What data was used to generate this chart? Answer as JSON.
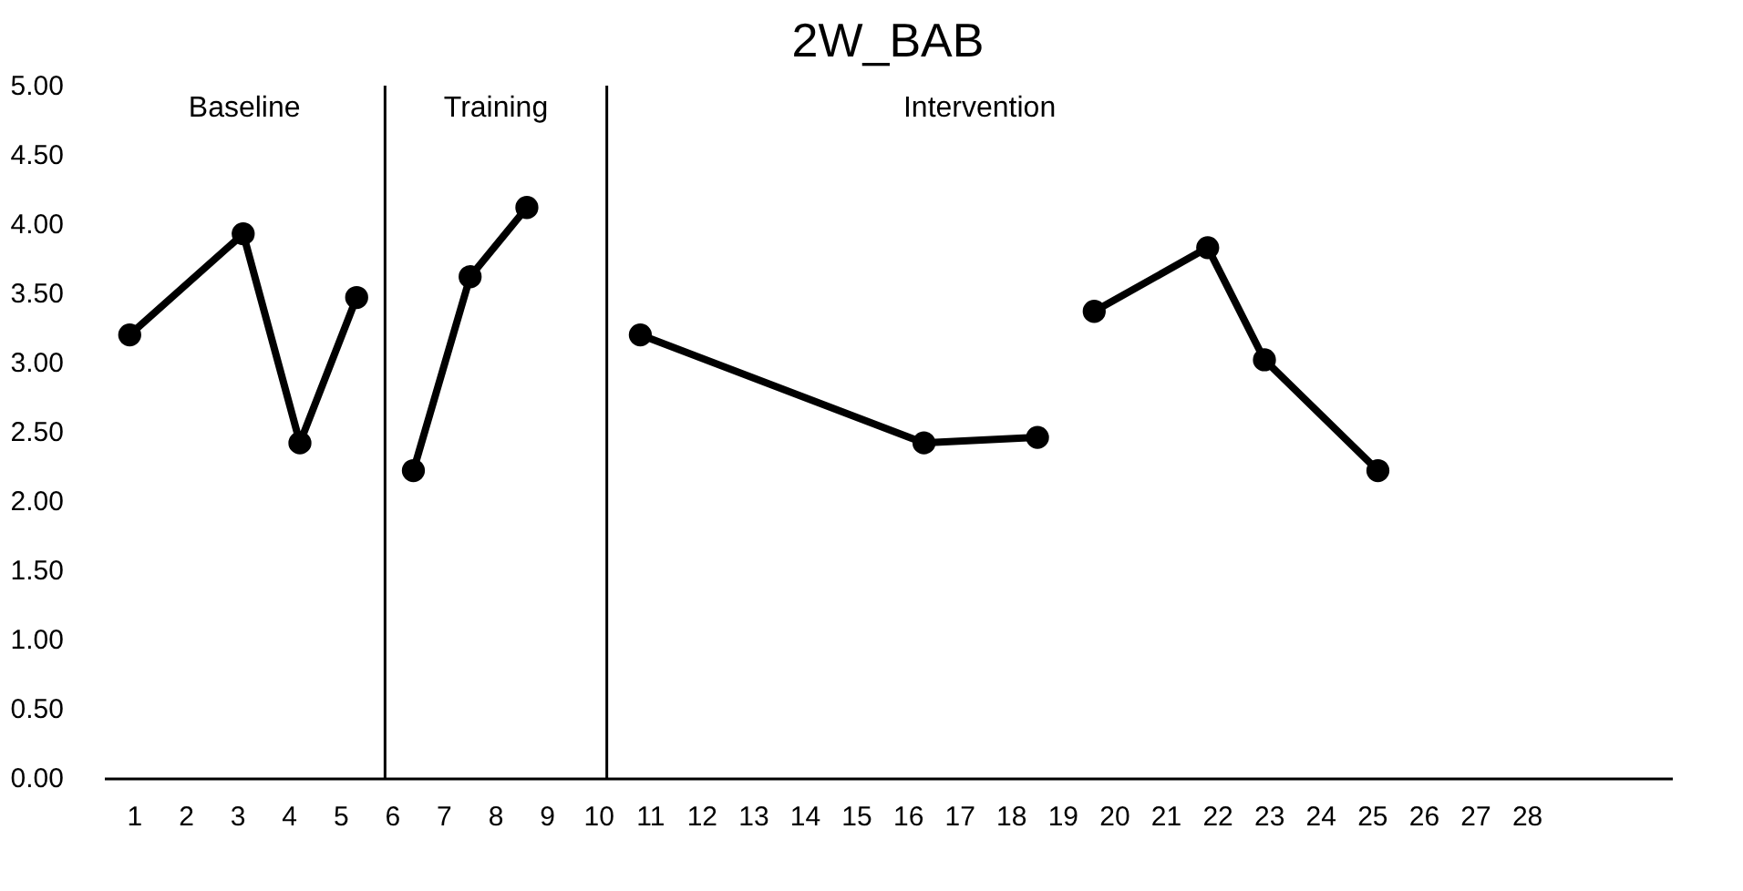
{
  "chart_data": {
    "type": "line",
    "title": "2W_BAB",
    "series": [
      {
        "color": "#000000",
        "x": [
          0.9,
          3.1,
          4.2,
          5.3
        ],
        "values": [
          3.2,
          3.93,
          2.42,
          3.47
        ]
      },
      {
        "color": "#000000",
        "x": [
          6.4,
          7.5,
          8.6
        ],
        "values": [
          2.22,
          3.62,
          4.12
        ]
      },
      {
        "color": "#000000",
        "x": [
          10.8,
          16.3,
          18.5
        ],
        "values": [
          3.2,
          2.42,
          2.46
        ]
      },
      {
        "color": "#000000",
        "x": [
          19.6,
          21.8,
          22.9,
          25.1
        ],
        "values": [
          3.37,
          3.83,
          3.02,
          2.22
        ]
      }
    ],
    "xlim": [
      0.4,
      30.8
    ],
    "xticks": [
      1,
      2,
      3,
      4,
      5,
      6,
      7,
      8,
      9,
      10,
      11,
      12,
      13,
      14,
      15,
      16,
      17,
      18,
      19,
      20,
      21,
      22,
      23,
      24,
      25,
      26,
      27,
      28
    ],
    "ylim": [
      0,
      5
    ],
    "yticks": [
      {
        "value": 0,
        "label": "0.00"
      },
      {
        "value": 0.5,
        "label": "0.50"
      },
      {
        "value": 1,
        "label": "1.00"
      },
      {
        "value": 1.5,
        "label": "1.50"
      },
      {
        "value": 2,
        "label": "2.00"
      },
      {
        "value": 2.5,
        "label": "2.50"
      },
      {
        "value": 3,
        "label": "3.00"
      },
      {
        "value": 3.5,
        "label": "3.50"
      },
      {
        "value": 4,
        "label": "4.00"
      },
      {
        "value": 4.5,
        "label": "4.50"
      },
      {
        "value": 5,
        "label": "5.00"
      }
    ],
    "ref_lines": [
      {
        "axis": "x",
        "value": 5.85,
        "color": "#000000"
      },
      {
        "axis": "x",
        "value": 10.15,
        "color": "#000000"
      }
    ],
    "annotations": [
      "Baseline",
      "Training",
      "Intervention"
    ],
    "marker": "circle",
    "line_style": "solid",
    "grid": false
  }
}
